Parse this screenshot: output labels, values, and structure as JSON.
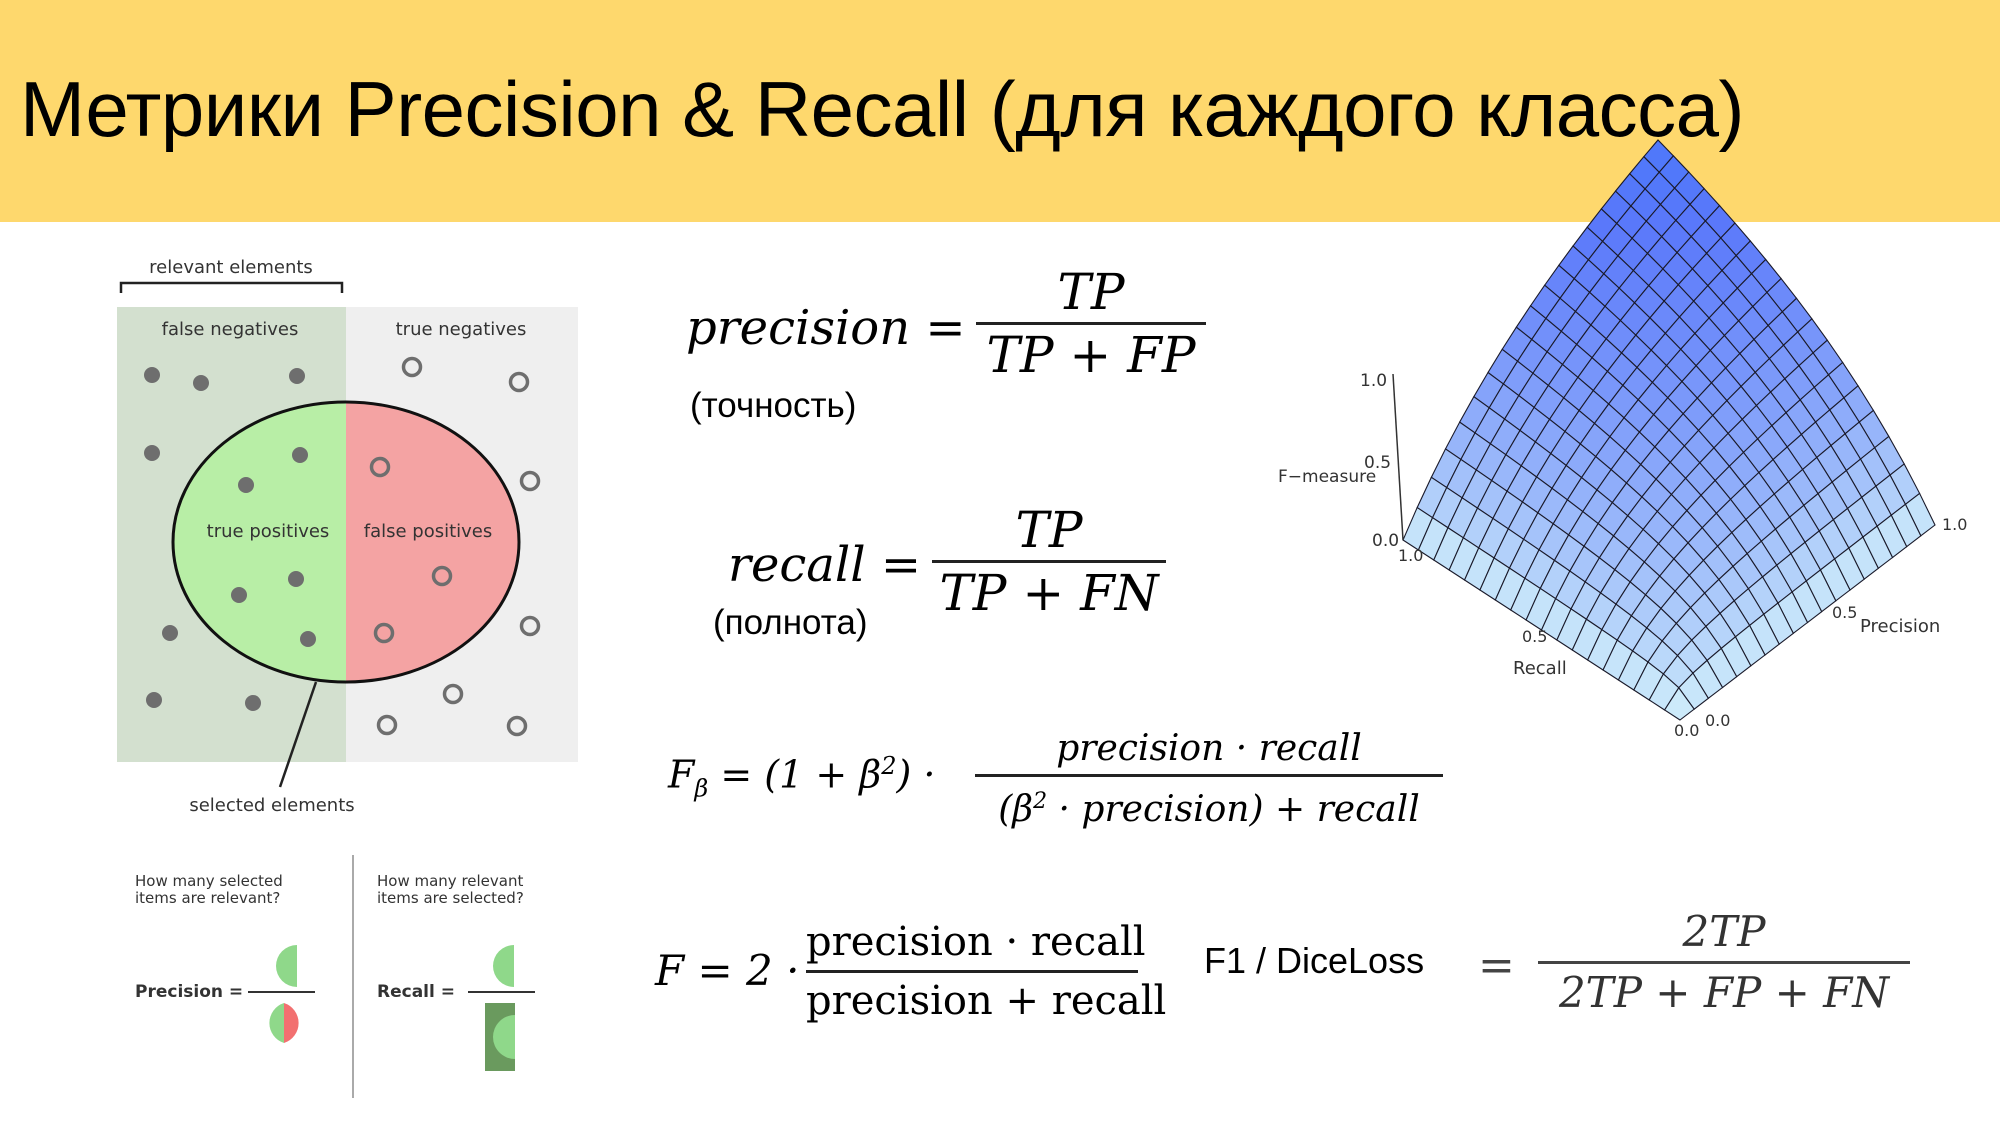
{
  "header": {
    "title": "Метрики Precision & Recall (для каждого класса)",
    "background": "#fed86d"
  },
  "diagram": {
    "relevant_label": "relevant elements",
    "false_negatives_label": "false negatives",
    "true_negatives_label": "true negatives",
    "true_positives_label": "true positives",
    "false_positives_label": "false positives",
    "selected_label": "selected elements",
    "colors": {
      "relevant_bg": "#d3e0cf",
      "irrelevant_bg": "#efefef",
      "tp": "#b8eea6",
      "fp": "#f4a3a3"
    }
  },
  "mini": {
    "precision_question": [
      "How many selected",
      "items are relevant?"
    ],
    "recall_question": [
      "How many relevant",
      "items are selected?"
    ],
    "precision_label": "Precision =",
    "recall_label": "Recall ="
  },
  "formulas": {
    "precision": {
      "lhs": "precision =",
      "num": "TP",
      "den": "TP + FP",
      "note": "(точность)"
    },
    "recall": {
      "lhs": "recall =",
      "num": "TP",
      "den": "TP + FN",
      "note": "(полнота)"
    },
    "fbeta": {
      "lhs_f": "F",
      "lhs_sub": "β",
      "lhs_rest": "= (1 + β",
      "lhs_sup": "2",
      "lhs_end": ") ·",
      "num": "precision · recall",
      "den_a": "(β",
      "den_sup": "2",
      "den_b": " · precision) + recall"
    },
    "f": {
      "lhs": "F = 2 ·",
      "num": "precision · recall",
      "den": "precision + recall"
    },
    "f1": {
      "label": "F1 / DiceLoss",
      "eq": "=",
      "num": "2TP",
      "den": "2TP + FP + FN"
    }
  },
  "surface": {
    "zlabel": "F−measure",
    "xlabel": "Recall",
    "ylabel": "Precision",
    "z_ticks": [
      "0.0",
      "0.5",
      "1.0"
    ],
    "recall_ticks": [
      "1.0",
      "0.5",
      "0.0"
    ],
    "precision_ticks": [
      "0.0",
      "0.5",
      "1.0"
    ]
  }
}
